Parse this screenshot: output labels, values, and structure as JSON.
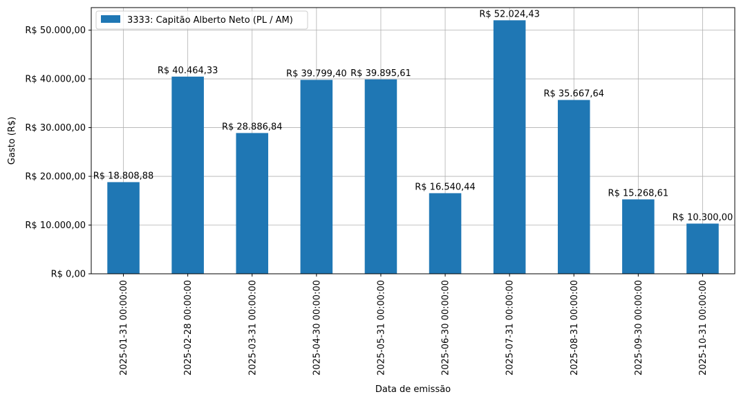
{
  "chart_data": {
    "type": "bar",
    "categories": [
      "2025-01-31 00:00:00",
      "2025-02-28 00:00:00",
      "2025-03-31 00:00:00",
      "2025-04-30 00:00:00",
      "2025-05-31 00:00:00",
      "2025-06-30 00:00:00",
      "2025-07-31 00:00:00",
      "2025-08-31 00:00:00",
      "2025-09-30 00:00:00",
      "2025-10-31 00:00:00"
    ],
    "series": [
      {
        "name": "3333: Capitão Alberto Neto (PL / AM)",
        "color": "#1f77b4",
        "values": [
          18808.88,
          40464.33,
          28886.84,
          39799.4,
          39895.61,
          16540.44,
          52024.43,
          35667.64,
          15268.61,
          10300.0
        ],
        "labels": [
          "R$ 18.808,88",
          "R$ 40.464,33",
          "R$ 28.886,84",
          "R$ 39.799,40",
          "R$ 39.895,61",
          "R$ 16.540,44",
          "R$ 52.024,43",
          "R$ 35.667,64",
          "R$ 15.268,61",
          "R$ 10.300,00"
        ]
      }
    ],
    "xlabel": "Data de emissão",
    "ylabel": "Gasto (R$)",
    "ylim": [
      0,
      54625.65
    ],
    "yticks": [
      0,
      10000,
      20000,
      30000,
      40000,
      50000
    ],
    "ytick_labels": [
      "R$ 0,00",
      "R$ 10.000,00",
      "R$ 20.000,00",
      "R$ 30.000,00",
      "R$ 40.000,00",
      "R$ 50.000,00"
    ],
    "grid": true,
    "legend_position": "upper-left"
  }
}
